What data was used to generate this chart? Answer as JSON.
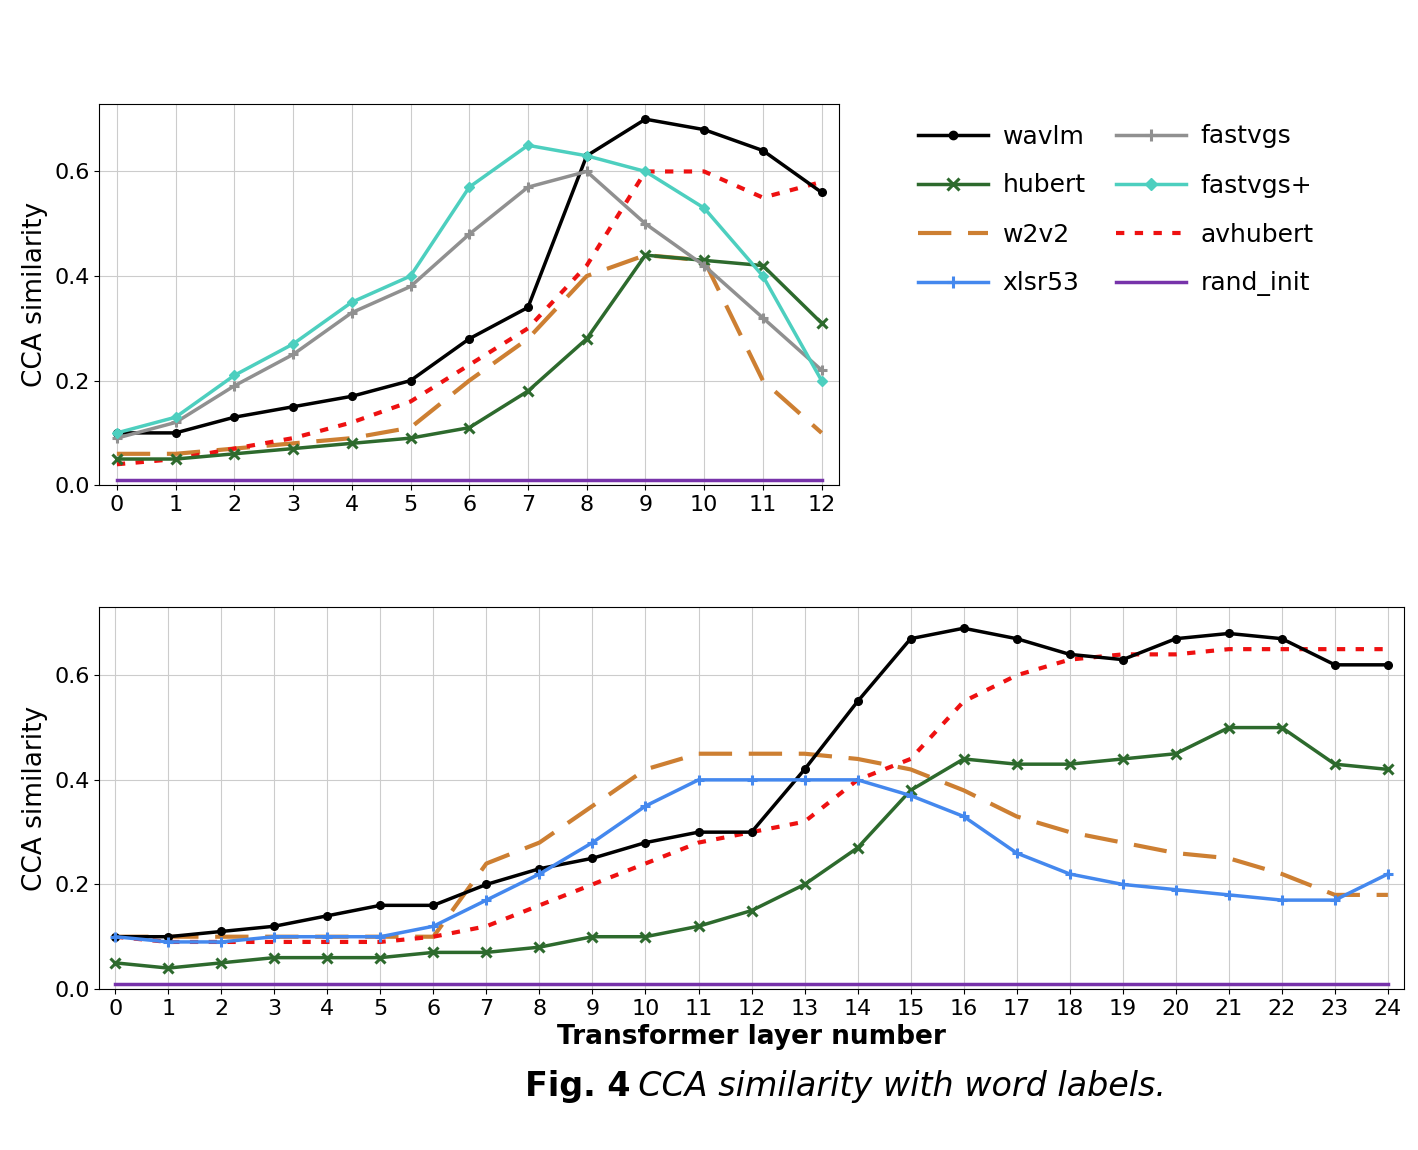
{
  "top_chart": {
    "ylabel": "CCA similarity",
    "xlim": [
      -0.3,
      12.3
    ],
    "ylim": [
      0.0,
      0.73
    ],
    "yticks": [
      0.0,
      0.2,
      0.4,
      0.6
    ],
    "xticks": [
      0,
      1,
      2,
      3,
      4,
      5,
      6,
      7,
      8,
      9,
      10,
      11,
      12
    ],
    "wavlm": [
      0.1,
      0.1,
      0.13,
      0.15,
      0.17,
      0.2,
      0.28,
      0.34,
      0.63,
      0.7,
      0.68,
      0.64,
      0.56
    ],
    "hubert": [
      0.05,
      0.05,
      0.06,
      0.07,
      0.08,
      0.09,
      0.11,
      0.18,
      0.28,
      0.44,
      0.43,
      0.42,
      0.31
    ],
    "w2v2": [
      0.06,
      0.06,
      0.07,
      0.08,
      0.09,
      0.11,
      0.2,
      0.28,
      0.4,
      0.44,
      0.43,
      0.2,
      0.1
    ],
    "fastvgs": [
      0.09,
      0.12,
      0.19,
      0.25,
      0.33,
      0.38,
      0.48,
      0.57,
      0.6,
      0.5,
      0.42,
      0.32,
      0.22
    ],
    "fastvgsplus": [
      0.1,
      0.13,
      0.21,
      0.27,
      0.35,
      0.4,
      0.57,
      0.65,
      0.63,
      0.6,
      0.53,
      0.4,
      0.2
    ],
    "avhubert": [
      0.04,
      0.05,
      0.07,
      0.09,
      0.12,
      0.16,
      0.23,
      0.3,
      0.42,
      0.6,
      0.6,
      0.55,
      0.58
    ],
    "rand_init": [
      0.01,
      0.01,
      0.01,
      0.01,
      0.01,
      0.01,
      0.01,
      0.01,
      0.01,
      0.01,
      0.01,
      0.01,
      0.01
    ]
  },
  "bottom_chart": {
    "xlabel": "Transformer layer number",
    "ylabel": "CCA similarity",
    "xlim": [
      -0.3,
      24.3
    ],
    "ylim": [
      0.0,
      0.73
    ],
    "yticks": [
      0.0,
      0.2,
      0.4,
      0.6
    ],
    "xticks": [
      0,
      1,
      2,
      3,
      4,
      5,
      6,
      7,
      8,
      9,
      10,
      11,
      12,
      13,
      14,
      15,
      16,
      17,
      18,
      19,
      20,
      21,
      22,
      23,
      24
    ],
    "wavlm": [
      0.1,
      0.1,
      0.11,
      0.12,
      0.14,
      0.16,
      0.16,
      0.2,
      0.23,
      0.25,
      0.28,
      0.3,
      0.3,
      0.42,
      0.55,
      0.67,
      0.69,
      0.67,
      0.64,
      0.63,
      0.67,
      0.68,
      0.67,
      0.62,
      0.62
    ],
    "hubert": [
      0.05,
      0.04,
      0.05,
      0.06,
      0.06,
      0.06,
      0.07,
      0.07,
      0.08,
      0.1,
      0.1,
      0.12,
      0.15,
      0.2,
      0.27,
      0.38,
      0.44,
      0.43,
      0.43,
      0.44,
      0.45,
      0.5,
      0.5,
      0.43,
      0.42
    ],
    "w2v2": [
      0.1,
      0.1,
      0.1,
      0.1,
      0.1,
      0.1,
      0.1,
      0.24,
      0.28,
      0.35,
      0.42,
      0.45,
      0.45,
      0.45,
      0.44,
      0.42,
      0.38,
      0.33,
      0.3,
      0.28,
      0.26,
      0.25,
      0.22,
      0.18,
      0.18
    ],
    "xlsr53": [
      0.1,
      0.09,
      0.09,
      0.1,
      0.1,
      0.1,
      0.12,
      0.17,
      0.22,
      0.28,
      0.35,
      0.4,
      0.4,
      0.4,
      0.4,
      0.37,
      0.33,
      0.26,
      0.22,
      0.2,
      0.19,
      0.18,
      0.17,
      0.17,
      0.22
    ],
    "avhubert": [
      0.1,
      0.09,
      0.09,
      0.09,
      0.09,
      0.09,
      0.1,
      0.12,
      0.16,
      0.2,
      0.24,
      0.28,
      0.3,
      0.32,
      0.4,
      0.44,
      0.55,
      0.6,
      0.63,
      0.64,
      0.64,
      0.65,
      0.65,
      0.65,
      0.65
    ],
    "rand_init": [
      0.01,
      0.01,
      0.01,
      0.01,
      0.01,
      0.01,
      0.01,
      0.01,
      0.01,
      0.01,
      0.01,
      0.01,
      0.01,
      0.01,
      0.01,
      0.01,
      0.01,
      0.01,
      0.01,
      0.01,
      0.01,
      0.01,
      0.01,
      0.01,
      0.01
    ]
  },
  "colors": {
    "wavlm": "#000000",
    "hubert": "#2d6a2d",
    "w2v2": "#cd7f32",
    "xlsr53": "#4488ee",
    "fastvgs": "#909090",
    "fastvgsplus": "#4dcfbf",
    "avhubert": "#ee1111",
    "rand_init": "#7733aa"
  },
  "legend_labels": {
    "wavlm": "wavlm",
    "hubert": "hubert",
    "w2v2": "w2v2",
    "xlsr53": "xlsr53",
    "fastvgs": "fastvgs",
    "fastvgsplus": "fastvgs+",
    "avhubert": "avhubert",
    "rand_init": "rand_init"
  },
  "caption_bold": "Fig. 4",
  "caption_italic": ". CCA similarity with word labels."
}
